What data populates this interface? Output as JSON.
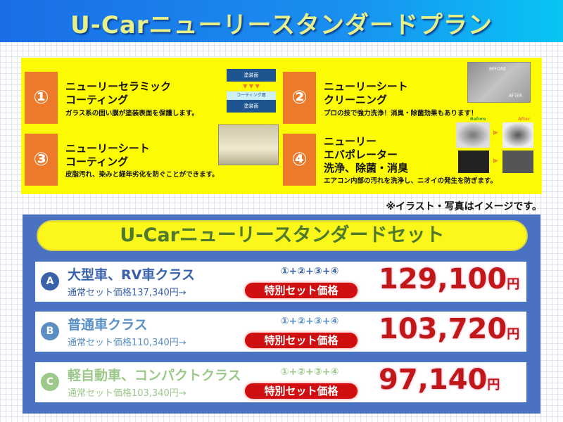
{
  "header": {
    "title": "U-Carニューリースタンダードプラン"
  },
  "services": [
    {
      "num": "①",
      "title1": "ニューリーセラミック",
      "title2": "コーティング",
      "title3": "",
      "desc": "ガラス系の固い膜が塗装表面を保護します。",
      "img_labels": [
        "塗装面",
        "コーティング層",
        "塗装面"
      ]
    },
    {
      "num": "②",
      "title1": "ニューリーシート",
      "title2": "クリーニング",
      "title3": "",
      "desc": "プロの技で強力洗浄！消臭・除菌効果もあります！",
      "img_labels": [
        "BEFORE",
        "AFTER"
      ]
    },
    {
      "num": "③",
      "title1": "ニューリーシート",
      "title2": "コーティング",
      "title3": "",
      "desc": "皮脂汚れ、染みと経年劣化を防ぐことができます。"
    },
    {
      "num": "④",
      "title1": "ニューリー",
      "title2": "エバポレーター",
      "title3": "洗浄、除菌・消臭",
      "desc": "エアコン内部の汚れを洗浄し、ニオイの発生を防ぎます。",
      "img_labels": [
        "Before",
        "After"
      ]
    }
  ],
  "note": "※イラスト・写真はイメージです。",
  "set": {
    "title": "U-Carニューリースタンダードセット",
    "rows": [
      {
        "badge": "A",
        "class": "大型車、RV車クラス",
        "normal": "通常セット価格137,340円→",
        "combo": "①+②+③+④",
        "special": "特別セット価格",
        "price": "129,100",
        "yen": "円",
        "color": "#3a62a8"
      },
      {
        "badge": "B",
        "class": "普通車クラス",
        "normal": "通常セット価格110,340円→",
        "combo": "①+②+③+④",
        "special": "特別セット価格",
        "price": "103,720",
        "yen": "円",
        "color": "#5a8fc4"
      },
      {
        "badge": "C",
        "class": "軽自動車、コンパクトクラス",
        "normal": "通常セット価格103,340円→",
        "combo": "①+②+③+④",
        "special": "特別セット価格",
        "price": "97,140",
        "yen": "円",
        "color": "#9cc88a"
      }
    ]
  },
  "colors": {
    "header": "#1a7ee8",
    "yellow": "#fdfb04",
    "orange": "#ec7a2a",
    "panel": "#4a72c0",
    "price": "#c01818"
  }
}
